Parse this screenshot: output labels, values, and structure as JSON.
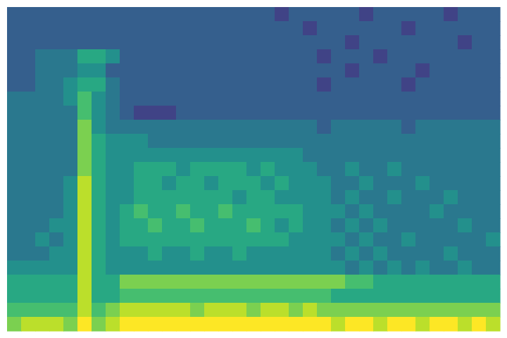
{
  "chart_data": {
    "type": "heatmap",
    "tick_labels": false,
    "zlim": [
      0,
      10
    ],
    "cells": [
      [
        3,
        3,
        3,
        3,
        3,
        3,
        3,
        3,
        3,
        3,
        3,
        3,
        3,
        3,
        3,
        3,
        3,
        3,
        3,
        2,
        3,
        3,
        3,
        3,
        3,
        2,
        3,
        3,
        3,
        3,
        3,
        2,
        3,
        3,
        3
      ],
      [
        3,
        3,
        3,
        3,
        3,
        3,
        3,
        3,
        3,
        3,
        3,
        3,
        3,
        3,
        3,
        3,
        3,
        3,
        3,
        3,
        3,
        2,
        3,
        3,
        3,
        3,
        3,
        3,
        2,
        3,
        3,
        3,
        3,
        3,
        3
      ],
      [
        3,
        3,
        3,
        3,
        3,
        3,
        3,
        3,
        3,
        3,
        3,
        3,
        3,
        3,
        3,
        3,
        3,
        3,
        3,
        3,
        3,
        3,
        3,
        3,
        2,
        3,
        3,
        3,
        3,
        3,
        3,
        3,
        2,
        3,
        3
      ],
      [
        3,
        3,
        4,
        4,
        4,
        6,
        6,
        5,
        3,
        3,
        3,
        3,
        3,
        3,
        3,
        3,
        3,
        3,
        3,
        3,
        3,
        3,
        2,
        3,
        3,
        3,
        2,
        3,
        3,
        3,
        3,
        3,
        3,
        3,
        3
      ],
      [
        3,
        3,
        4,
        4,
        4,
        5,
        5,
        3,
        3,
        3,
        3,
        3,
        3,
        3,
        3,
        3,
        3,
        3,
        3,
        3,
        3,
        3,
        3,
        3,
        2,
        3,
        3,
        3,
        3,
        2,
        3,
        3,
        3,
        3,
        3
      ],
      [
        3,
        3,
        4,
        4,
        5,
        6,
        6,
        4,
        3,
        3,
        3,
        3,
        3,
        3,
        3,
        3,
        3,
        3,
        3,
        3,
        3,
        3,
        2,
        3,
        3,
        3,
        3,
        3,
        2,
        3,
        3,
        3,
        3,
        3,
        3
      ],
      [
        4,
        4,
        4,
        4,
        5,
        7,
        5,
        4,
        3,
        3,
        3,
        3,
        3,
        3,
        3,
        3,
        3,
        3,
        3,
        3,
        3,
        3,
        3,
        3,
        3,
        3,
        3,
        3,
        3,
        3,
        3,
        3,
        3,
        3,
        3
      ],
      [
        4,
        4,
        4,
        4,
        4,
        7,
        5,
        4,
        3,
        2,
        2,
        2,
        3,
        3,
        3,
        3,
        3,
        3,
        3,
        3,
        3,
        3,
        3,
        3,
        3,
        3,
        3,
        3,
        3,
        3,
        3,
        3,
        3,
        3,
        3
      ],
      [
        4,
        4,
        4,
        4,
        4,
        8,
        5,
        4,
        4,
        4,
        4,
        4,
        4,
        4,
        4,
        4,
        4,
        4,
        4,
        4,
        4,
        4,
        3,
        4,
        4,
        4,
        4,
        4,
        3,
        4,
        4,
        4,
        4,
        4,
        4
      ],
      [
        4,
        4,
        4,
        4,
        4,
        8,
        6,
        5,
        5,
        5,
        4,
        4,
        4,
        4,
        4,
        4,
        4,
        4,
        4,
        4,
        4,
        4,
        4,
        4,
        4,
        4,
        4,
        4,
        4,
        4,
        4,
        4,
        4,
        4,
        4
      ],
      [
        4,
        4,
        4,
        4,
        4,
        8,
        6,
        5,
        5,
        5,
        5,
        5,
        5,
        5,
        5,
        5,
        5,
        5,
        5,
        5,
        5,
        4,
        4,
        4,
        4,
        4,
        4,
        4,
        4,
        4,
        4,
        4,
        4,
        4,
        4
      ],
      [
        4,
        4,
        4,
        4,
        4,
        8,
        6,
        5,
        5,
        6,
        6,
        6,
        5,
        6,
        6,
        6,
        6,
        5,
        6,
        5,
        5,
        5,
        4,
        4,
        5,
        4,
        4,
        5,
        4,
        4,
        4,
        4,
        4,
        4,
        4
      ],
      [
        4,
        4,
        4,
        4,
        5,
        9,
        6,
        5,
        5,
        6,
        6,
        5,
        6,
        6,
        5,
        6,
        6,
        6,
        5,
        6,
        5,
        5,
        5,
        4,
        4,
        5,
        4,
        4,
        4,
        5,
        4,
        4,
        4,
        4,
        4
      ],
      [
        4,
        4,
        4,
        4,
        5,
        9,
        6,
        5,
        5,
        6,
        6,
        6,
        6,
        6,
        6,
        6,
        5,
        6,
        6,
        5,
        5,
        5,
        5,
        4,
        5,
        4,
        4,
        5,
        4,
        4,
        4,
        5,
        4,
        4,
        4
      ],
      [
        4,
        4,
        4,
        4,
        5,
        9,
        6,
        5,
        6,
        7,
        6,
        6,
        7,
        6,
        6,
        7,
        6,
        6,
        6,
        6,
        6,
        5,
        5,
        5,
        4,
        5,
        4,
        4,
        4,
        4,
        5,
        4,
        4,
        4,
        4
      ],
      [
        4,
        4,
        4,
        5,
        5,
        9,
        6,
        5,
        6,
        6,
        7,
        6,
        6,
        7,
        6,
        6,
        6,
        7,
        6,
        5,
        6,
        5,
        5,
        4,
        5,
        4,
        5,
        4,
        4,
        4,
        4,
        4,
        5,
        4,
        4
      ],
      [
        4,
        4,
        5,
        4,
        5,
        9,
        6,
        5,
        6,
        6,
        6,
        6,
        6,
        6,
        6,
        6,
        6,
        6,
        6,
        6,
        5,
        5,
        5,
        5,
        4,
        5,
        4,
        4,
        5,
        4,
        4,
        4,
        4,
        4,
        5
      ],
      [
        4,
        4,
        4,
        5,
        5,
        9,
        6,
        5,
        5,
        5,
        6,
        5,
        5,
        6,
        5,
        5,
        6,
        5,
        5,
        5,
        5,
        5,
        5,
        4,
        5,
        4,
        5,
        4,
        4,
        4,
        4,
        5,
        4,
        4,
        4
      ],
      [
        5,
        5,
        5,
        5,
        5,
        9,
        6,
        5,
        5,
        5,
        5,
        5,
        5,
        5,
        5,
        5,
        5,
        5,
        5,
        5,
        5,
        5,
        5,
        5,
        4,
        5,
        4,
        5,
        4,
        5,
        4,
        4,
        5,
        4,
        4
      ],
      [
        6,
        6,
        6,
        6,
        6,
        9,
        6,
        6,
        8,
        8,
        8,
        8,
        8,
        8,
        8,
        8,
        8,
        8,
        8,
        8,
        8,
        8,
        8,
        8,
        7,
        7,
        6,
        6,
        6,
        6,
        6,
        6,
        6,
        6,
        6
      ],
      [
        6,
        6,
        6,
        6,
        6,
        9,
        6,
        6,
        7,
        7,
        7,
        7,
        7,
        7,
        7,
        7,
        7,
        7,
        7,
        7,
        7,
        7,
        7,
        6,
        6,
        6,
        6,
        6,
        6,
        6,
        6,
        6,
        6,
        6,
        6
      ],
      [
        7,
        7,
        7,
        7,
        7,
        9,
        7,
        8,
        9,
        9,
        9,
        9,
        9,
        8,
        9,
        9,
        9,
        8,
        9,
        9,
        8,
        9,
        8,
        8,
        8,
        8,
        8,
        8,
        8,
        8,
        8,
        8,
        8,
        8,
        8
      ],
      [
        8,
        9,
        9,
        9,
        8,
        10,
        8,
        9,
        10,
        10,
        10,
        10,
        10,
        10,
        10,
        10,
        10,
        10,
        10,
        10,
        10,
        10,
        10,
        9,
        10,
        10,
        9,
        10,
        10,
        9,
        10,
        10,
        9,
        10,
        9
      ]
    ]
  }
}
